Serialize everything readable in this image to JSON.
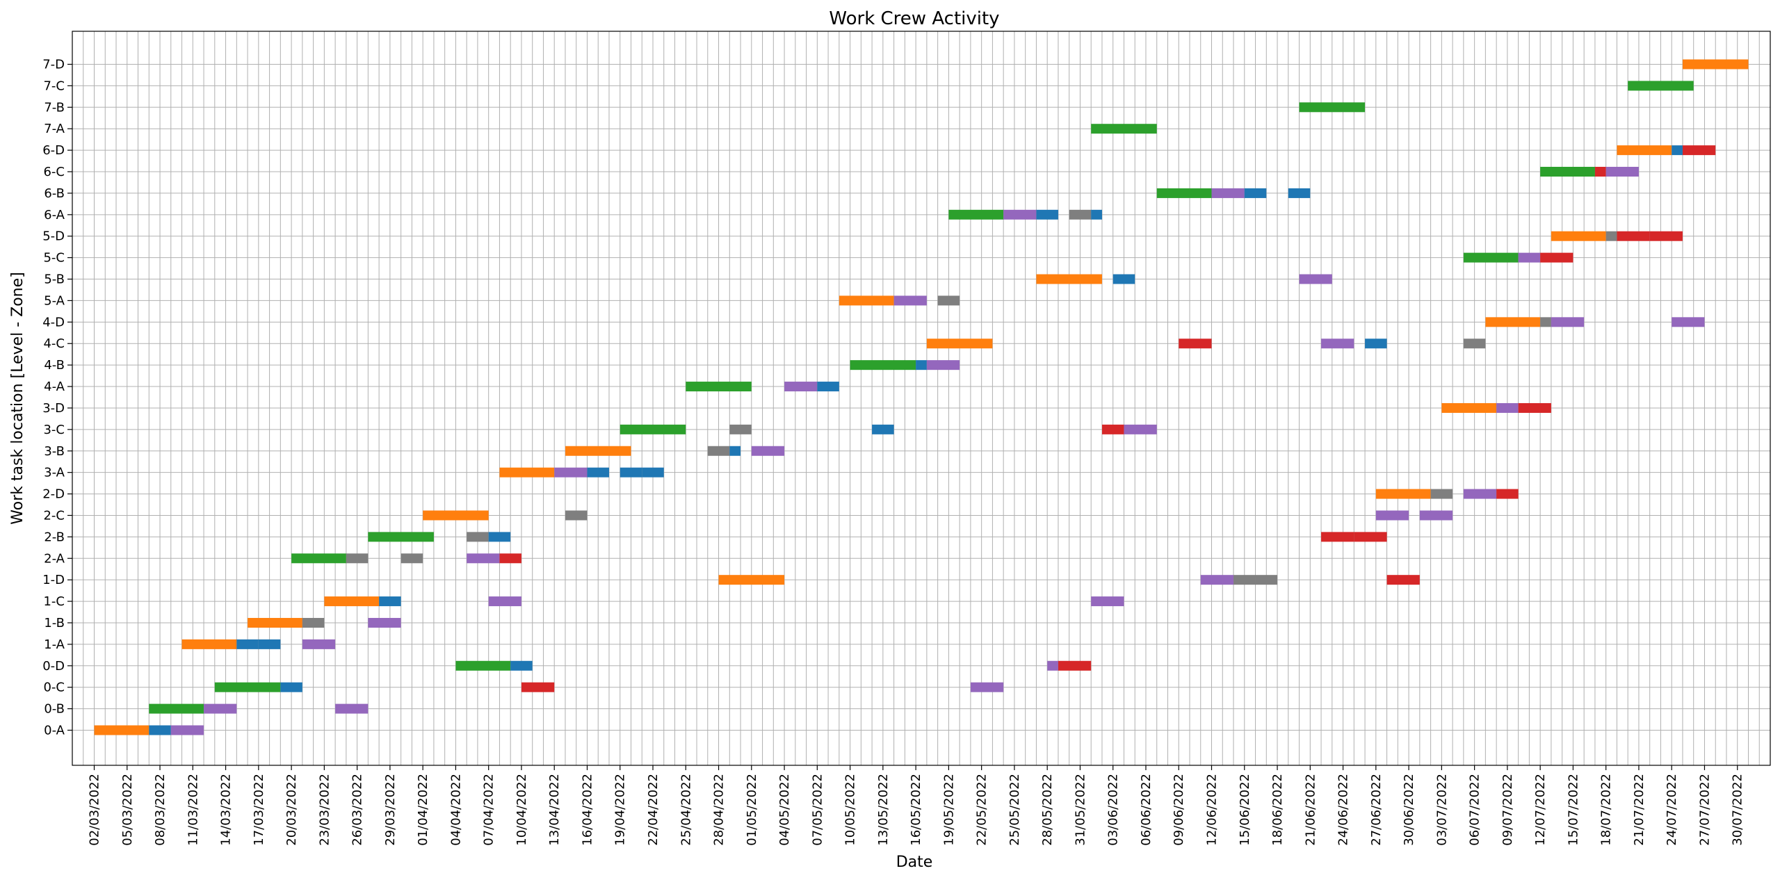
{
  "chart_data": {
    "type": "gantt",
    "title": "Work Crew Activity",
    "xlabel": "Date",
    "ylabel": "Work task location [Level - Zone]",
    "xlim": [
      "2022-02-28",
      "2022-08-02"
    ],
    "x_tick_format": "DD/MM/YYYY",
    "x_ticks": [
      "2022-03-02",
      "2022-03-05",
      "2022-03-08",
      "2022-03-11",
      "2022-03-14",
      "2022-03-17",
      "2022-03-20",
      "2022-03-23",
      "2022-03-26",
      "2022-03-29",
      "2022-04-01",
      "2022-04-04",
      "2022-04-07",
      "2022-04-10",
      "2022-04-13",
      "2022-04-16",
      "2022-04-19",
      "2022-04-22",
      "2022-04-25",
      "2022-04-28",
      "2022-05-01",
      "2022-05-04",
      "2022-05-07",
      "2022-05-10",
      "2022-05-13",
      "2022-05-16",
      "2022-05-19",
      "2022-05-22",
      "2022-05-25",
      "2022-05-28",
      "2022-05-31",
      "2022-06-03",
      "2022-06-06",
      "2022-06-09",
      "2022-06-12",
      "2022-06-15",
      "2022-06-18",
      "2022-06-21",
      "2022-06-24",
      "2022-06-27",
      "2022-06-30",
      "2022-07-03",
      "2022-07-06",
      "2022-07-09",
      "2022-07-12",
      "2022-07-15",
      "2022-07-18",
      "2022-07-21",
      "2022-07-24",
      "2022-07-27",
      "2022-07-30"
    ],
    "x_grid": "daily",
    "grid": true,
    "legend": "none",
    "categories": [
      "0-A",
      "0-B",
      "0-C",
      "0-D",
      "1-A",
      "1-B",
      "1-C",
      "1-D",
      "2-A",
      "2-B",
      "2-C",
      "2-D",
      "3-A",
      "3-B",
      "3-C",
      "3-D",
      "4-A",
      "4-B",
      "4-C",
      "4-D",
      "5-A",
      "5-B",
      "5-C",
      "5-D",
      "6-A",
      "6-B",
      "6-C",
      "6-D",
      "7-A",
      "7-B",
      "7-C",
      "7-D"
    ],
    "colors": {
      "orange": "#ff7f0e",
      "blue": "#1f77b4",
      "purple": "#9467bd",
      "green": "#2ca02c",
      "gray": "#7f7f7f",
      "red": "#d62728"
    },
    "tasks": [
      {
        "loc": "0-A",
        "start": "2022-03-02",
        "end": "2022-03-07",
        "color": "orange"
      },
      {
        "loc": "0-A",
        "start": "2022-03-07",
        "end": "2022-03-09",
        "color": "blue"
      },
      {
        "loc": "0-A",
        "start": "2022-03-09",
        "end": "2022-03-12",
        "color": "purple"
      },
      {
        "loc": "0-B",
        "start": "2022-03-07",
        "end": "2022-03-12",
        "color": "green"
      },
      {
        "loc": "0-B",
        "start": "2022-03-12",
        "end": "2022-03-15",
        "color": "purple"
      },
      {
        "loc": "0-B",
        "start": "2022-03-24",
        "end": "2022-03-27",
        "color": "purple"
      },
      {
        "loc": "0-C",
        "start": "2022-03-13",
        "end": "2022-03-19",
        "color": "green"
      },
      {
        "loc": "0-C",
        "start": "2022-03-19",
        "end": "2022-03-21",
        "color": "blue"
      },
      {
        "loc": "0-C",
        "start": "2022-04-10",
        "end": "2022-04-13",
        "color": "red"
      },
      {
        "loc": "0-C",
        "start": "2022-05-21",
        "end": "2022-05-24",
        "color": "purple"
      },
      {
        "loc": "0-D",
        "start": "2022-04-04",
        "end": "2022-04-09",
        "color": "green"
      },
      {
        "loc": "0-D",
        "start": "2022-04-09",
        "end": "2022-04-11",
        "color": "blue"
      },
      {
        "loc": "0-D",
        "start": "2022-05-28",
        "end": "2022-05-29",
        "color": "purple"
      },
      {
        "loc": "0-D",
        "start": "2022-05-29",
        "end": "2022-06-01",
        "color": "red"
      },
      {
        "loc": "1-A",
        "start": "2022-03-10",
        "end": "2022-03-15",
        "color": "orange"
      },
      {
        "loc": "1-A",
        "start": "2022-03-15",
        "end": "2022-03-17",
        "color": "blue"
      },
      {
        "loc": "1-A",
        "start": "2022-03-17",
        "end": "2022-03-19",
        "color": "blue"
      },
      {
        "loc": "1-A",
        "start": "2022-03-21",
        "end": "2022-03-24",
        "color": "purple"
      },
      {
        "loc": "1-B",
        "start": "2022-03-16",
        "end": "2022-03-21",
        "color": "orange"
      },
      {
        "loc": "1-B",
        "start": "2022-03-21",
        "end": "2022-03-23",
        "color": "gray"
      },
      {
        "loc": "1-B",
        "start": "2022-03-27",
        "end": "2022-03-30",
        "color": "purple"
      },
      {
        "loc": "1-C",
        "start": "2022-03-23",
        "end": "2022-03-28",
        "color": "orange"
      },
      {
        "loc": "1-C",
        "start": "2022-03-28",
        "end": "2022-03-30",
        "color": "blue"
      },
      {
        "loc": "1-C",
        "start": "2022-04-07",
        "end": "2022-04-10",
        "color": "purple"
      },
      {
        "loc": "1-C",
        "start": "2022-06-01",
        "end": "2022-06-04",
        "color": "purple"
      },
      {
        "loc": "1-D",
        "start": "2022-04-28",
        "end": "2022-05-04",
        "color": "orange"
      },
      {
        "loc": "1-D",
        "start": "2022-06-11",
        "end": "2022-06-14",
        "color": "purple"
      },
      {
        "loc": "1-D",
        "start": "2022-06-14",
        "end": "2022-06-16",
        "color": "gray"
      },
      {
        "loc": "1-D",
        "start": "2022-06-16",
        "end": "2022-06-18",
        "color": "gray"
      },
      {
        "loc": "1-D",
        "start": "2022-06-28",
        "end": "2022-07-01",
        "color": "red"
      },
      {
        "loc": "2-A",
        "start": "2022-03-20",
        "end": "2022-03-25",
        "color": "green"
      },
      {
        "loc": "2-A",
        "start": "2022-03-25",
        "end": "2022-03-27",
        "color": "gray"
      },
      {
        "loc": "2-A",
        "start": "2022-03-30",
        "end": "2022-04-01",
        "color": "gray"
      },
      {
        "loc": "2-A",
        "start": "2022-04-05",
        "end": "2022-04-08",
        "color": "purple"
      },
      {
        "loc": "2-A",
        "start": "2022-04-08",
        "end": "2022-04-10",
        "color": "red"
      },
      {
        "loc": "2-B",
        "start": "2022-03-27",
        "end": "2022-04-02",
        "color": "green"
      },
      {
        "loc": "2-B",
        "start": "2022-04-05",
        "end": "2022-04-07",
        "color": "gray"
      },
      {
        "loc": "2-B",
        "start": "2022-04-07",
        "end": "2022-04-09",
        "color": "blue"
      },
      {
        "loc": "2-B",
        "start": "2022-06-22",
        "end": "2022-06-25",
        "color": "red"
      },
      {
        "loc": "2-B",
        "start": "2022-06-25",
        "end": "2022-06-28",
        "color": "red"
      },
      {
        "loc": "2-C",
        "start": "2022-04-01",
        "end": "2022-04-07",
        "color": "orange"
      },
      {
        "loc": "2-C",
        "start": "2022-04-14",
        "end": "2022-04-16",
        "color": "gray"
      },
      {
        "loc": "2-C",
        "start": "2022-06-27",
        "end": "2022-06-30",
        "color": "purple"
      },
      {
        "loc": "2-C",
        "start": "2022-07-01",
        "end": "2022-07-04",
        "color": "purple"
      },
      {
        "loc": "2-D",
        "start": "2022-06-27",
        "end": "2022-07-02",
        "color": "orange"
      },
      {
        "loc": "2-D",
        "start": "2022-07-02",
        "end": "2022-07-04",
        "color": "gray"
      },
      {
        "loc": "2-D",
        "start": "2022-07-05",
        "end": "2022-07-08",
        "color": "purple"
      },
      {
        "loc": "2-D",
        "start": "2022-07-08",
        "end": "2022-07-10",
        "color": "red"
      },
      {
        "loc": "3-A",
        "start": "2022-04-08",
        "end": "2022-04-13",
        "color": "orange"
      },
      {
        "loc": "3-A",
        "start": "2022-04-13",
        "end": "2022-04-16",
        "color": "purple"
      },
      {
        "loc": "3-A",
        "start": "2022-04-16",
        "end": "2022-04-18",
        "color": "blue"
      },
      {
        "loc": "3-A",
        "start": "2022-04-19",
        "end": "2022-04-21",
        "color": "blue"
      },
      {
        "loc": "3-A",
        "start": "2022-04-21",
        "end": "2022-04-23",
        "color": "blue"
      },
      {
        "loc": "3-B",
        "start": "2022-04-14",
        "end": "2022-04-20",
        "color": "orange"
      },
      {
        "loc": "3-B",
        "start": "2022-04-27",
        "end": "2022-04-29",
        "color": "gray"
      },
      {
        "loc": "3-B",
        "start": "2022-04-29",
        "end": "2022-04-30",
        "color": "blue"
      },
      {
        "loc": "3-B",
        "start": "2022-05-01",
        "end": "2022-05-04",
        "color": "purple"
      },
      {
        "loc": "3-C",
        "start": "2022-04-19",
        "end": "2022-04-25",
        "color": "green"
      },
      {
        "loc": "3-C",
        "start": "2022-04-29",
        "end": "2022-05-01",
        "color": "gray"
      },
      {
        "loc": "3-C",
        "start": "2022-05-12",
        "end": "2022-05-14",
        "color": "blue"
      },
      {
        "loc": "3-C",
        "start": "2022-06-02",
        "end": "2022-06-04",
        "color": "red"
      },
      {
        "loc": "3-C",
        "start": "2022-06-04",
        "end": "2022-06-07",
        "color": "purple"
      },
      {
        "loc": "3-D",
        "start": "2022-07-03",
        "end": "2022-07-08",
        "color": "orange"
      },
      {
        "loc": "3-D",
        "start": "2022-07-08",
        "end": "2022-07-10",
        "color": "purple"
      },
      {
        "loc": "3-D",
        "start": "2022-07-10",
        "end": "2022-07-13",
        "color": "red"
      },
      {
        "loc": "4-A",
        "start": "2022-04-25",
        "end": "2022-05-01",
        "color": "green"
      },
      {
        "loc": "4-A",
        "start": "2022-05-04",
        "end": "2022-05-07",
        "color": "purple"
      },
      {
        "loc": "4-A",
        "start": "2022-05-07",
        "end": "2022-05-09",
        "color": "blue"
      },
      {
        "loc": "4-B",
        "start": "2022-05-10",
        "end": "2022-05-16",
        "color": "green"
      },
      {
        "loc": "4-B",
        "start": "2022-05-16",
        "end": "2022-05-17",
        "color": "blue"
      },
      {
        "loc": "4-B",
        "start": "2022-05-17",
        "end": "2022-05-20",
        "color": "purple"
      },
      {
        "loc": "4-C",
        "start": "2022-05-17",
        "end": "2022-05-23",
        "color": "orange"
      },
      {
        "loc": "4-C",
        "start": "2022-06-09",
        "end": "2022-06-12",
        "color": "red"
      },
      {
        "loc": "4-C",
        "start": "2022-06-22",
        "end": "2022-06-25",
        "color": "purple"
      },
      {
        "loc": "4-C",
        "start": "2022-06-26",
        "end": "2022-06-28",
        "color": "blue"
      },
      {
        "loc": "4-C",
        "start": "2022-07-05",
        "end": "2022-07-07",
        "color": "gray"
      },
      {
        "loc": "4-D",
        "start": "2022-07-07",
        "end": "2022-07-12",
        "color": "orange"
      },
      {
        "loc": "4-D",
        "start": "2022-07-12",
        "end": "2022-07-13",
        "color": "gray"
      },
      {
        "loc": "4-D",
        "start": "2022-07-13",
        "end": "2022-07-16",
        "color": "purple"
      },
      {
        "loc": "4-D",
        "start": "2022-07-24",
        "end": "2022-07-27",
        "color": "purple"
      },
      {
        "loc": "5-A",
        "start": "2022-05-09",
        "end": "2022-05-14",
        "color": "orange"
      },
      {
        "loc": "5-A",
        "start": "2022-05-14",
        "end": "2022-05-17",
        "color": "purple"
      },
      {
        "loc": "5-A",
        "start": "2022-05-18",
        "end": "2022-05-20",
        "color": "gray"
      },
      {
        "loc": "5-B",
        "start": "2022-05-27",
        "end": "2022-06-02",
        "color": "orange"
      },
      {
        "loc": "5-B",
        "start": "2022-06-03",
        "end": "2022-06-05",
        "color": "blue"
      },
      {
        "loc": "5-B",
        "start": "2022-06-20",
        "end": "2022-06-23",
        "color": "purple"
      },
      {
        "loc": "5-C",
        "start": "2022-07-05",
        "end": "2022-07-10",
        "color": "green"
      },
      {
        "loc": "5-C",
        "start": "2022-07-10",
        "end": "2022-07-12",
        "color": "purple"
      },
      {
        "loc": "5-C",
        "start": "2022-07-12",
        "end": "2022-07-15",
        "color": "red"
      },
      {
        "loc": "5-D",
        "start": "2022-07-13",
        "end": "2022-07-18",
        "color": "orange"
      },
      {
        "loc": "5-D",
        "start": "2022-07-18",
        "end": "2022-07-19",
        "color": "gray"
      },
      {
        "loc": "5-D",
        "start": "2022-07-19",
        "end": "2022-07-22",
        "color": "red"
      },
      {
        "loc": "5-D",
        "start": "2022-07-22",
        "end": "2022-07-25",
        "color": "red"
      },
      {
        "loc": "6-A",
        "start": "2022-05-19",
        "end": "2022-05-24",
        "color": "green"
      },
      {
        "loc": "6-A",
        "start": "2022-05-24",
        "end": "2022-05-27",
        "color": "purple"
      },
      {
        "loc": "6-A",
        "start": "2022-05-27",
        "end": "2022-05-29",
        "color": "blue"
      },
      {
        "loc": "6-A",
        "start": "2022-05-30",
        "end": "2022-06-01",
        "color": "gray"
      },
      {
        "loc": "6-A",
        "start": "2022-06-01",
        "end": "2022-06-02",
        "color": "blue"
      },
      {
        "loc": "6-B",
        "start": "2022-06-07",
        "end": "2022-06-12",
        "color": "green"
      },
      {
        "loc": "6-B",
        "start": "2022-06-12",
        "end": "2022-06-15",
        "color": "purple"
      },
      {
        "loc": "6-B",
        "start": "2022-06-15",
        "end": "2022-06-17",
        "color": "blue"
      },
      {
        "loc": "6-B",
        "start": "2022-06-19",
        "end": "2022-06-21",
        "color": "blue"
      },
      {
        "loc": "6-C",
        "start": "2022-07-12",
        "end": "2022-07-17",
        "color": "green"
      },
      {
        "loc": "6-C",
        "start": "2022-07-17",
        "end": "2022-07-18",
        "color": "red"
      },
      {
        "loc": "6-C",
        "start": "2022-07-18",
        "end": "2022-07-21",
        "color": "purple"
      },
      {
        "loc": "6-D",
        "start": "2022-07-19",
        "end": "2022-07-24",
        "color": "orange"
      },
      {
        "loc": "6-D",
        "start": "2022-07-24",
        "end": "2022-07-25",
        "color": "blue"
      },
      {
        "loc": "6-D",
        "start": "2022-07-25",
        "end": "2022-07-28",
        "color": "red"
      },
      {
        "loc": "7-A",
        "start": "2022-06-01",
        "end": "2022-06-07",
        "color": "green"
      },
      {
        "loc": "7-B",
        "start": "2022-06-20",
        "end": "2022-06-26",
        "color": "green"
      },
      {
        "loc": "7-C",
        "start": "2022-07-20",
        "end": "2022-07-26",
        "color": "green"
      },
      {
        "loc": "7-D",
        "start": "2022-07-25",
        "end": "2022-07-31",
        "color": "orange"
      }
    ]
  }
}
